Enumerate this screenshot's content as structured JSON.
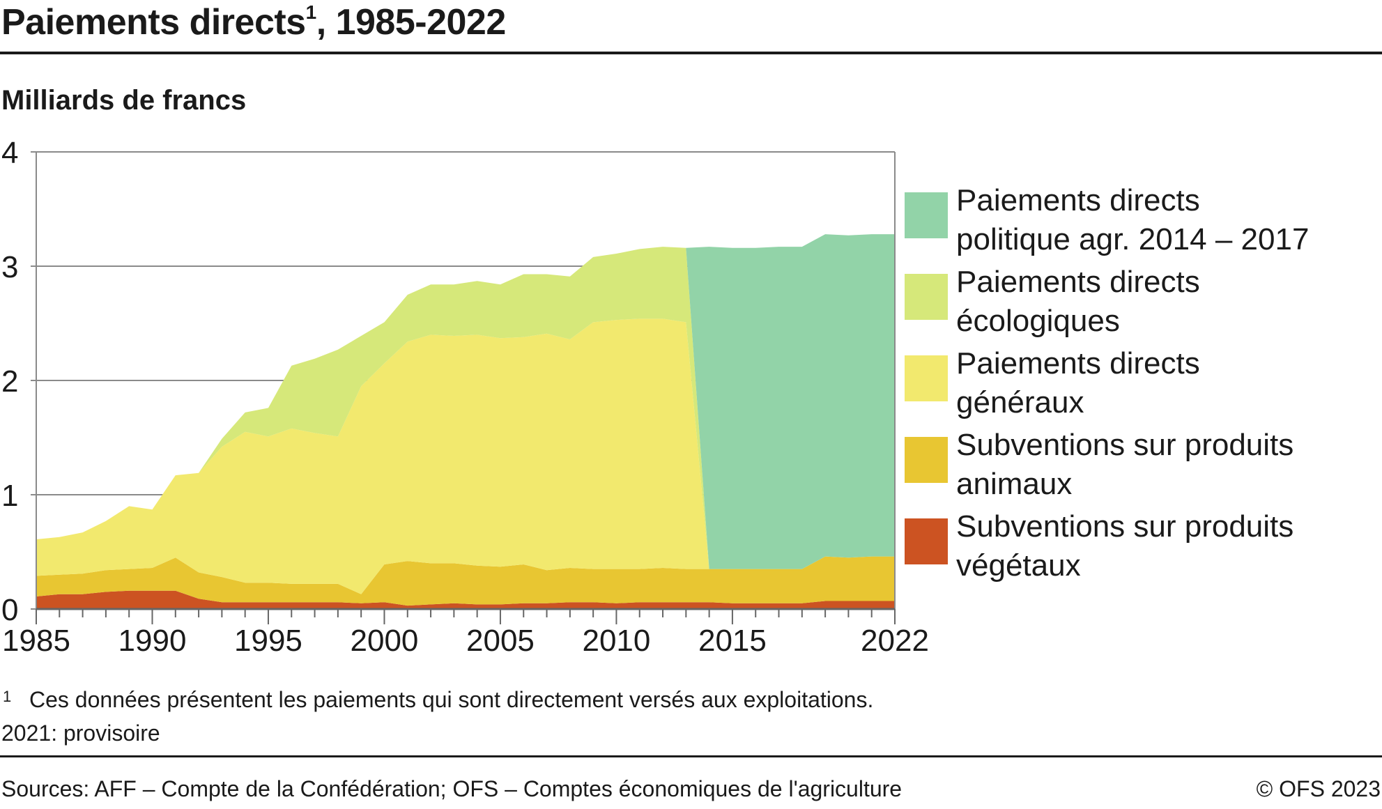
{
  "title": "Paiements directs",
  "title_mark": "1",
  "title_years": ", 1985-2022",
  "subtitle": "Milliards de francs",
  "footnote_mark": "1",
  "footnote": "Ces données présentent les paiements qui sont directement versés aux exploitations.",
  "note": "2021: provisoire",
  "source": "Sources: AFF – Compte de la Confédération; OFS – Comptes économiques de l'agriculture",
  "copyright": "© OFS 2023",
  "chart_data": {
    "type": "area",
    "stacked": true,
    "x": [
      1985,
      1986,
      1987,
      1988,
      1989,
      1990,
      1991,
      1992,
      1993,
      1994,
      1995,
      1996,
      1997,
      1998,
      1999,
      2000,
      2001,
      2002,
      2003,
      2004,
      2005,
      2006,
      2007,
      2008,
      2009,
      2010,
      2011,
      2012,
      2013,
      2014,
      2015,
      2016,
      2017,
      2018,
      2019,
      2020,
      2021,
      2022
    ],
    "xticks": [
      "1985",
      "1990",
      "1995",
      "2000",
      "2005",
      "2010",
      "2015",
      "2022"
    ],
    "yticks": [
      "0",
      "1",
      "2",
      "3",
      "4"
    ],
    "ylim": [
      0,
      4
    ],
    "xlim": [
      1985,
      2022
    ],
    "grid": "horizontal",
    "legend_position": "right",
    "series": [
      {
        "name": "Subventions sur produits végétaux",
        "color": "#cc5322",
        "values": [
          0.11,
          0.13,
          0.13,
          0.15,
          0.16,
          0.16,
          0.16,
          0.09,
          0.06,
          0.06,
          0.06,
          0.06,
          0.06,
          0.06,
          0.05,
          0.06,
          0.03,
          0.04,
          0.05,
          0.04,
          0.04,
          0.05,
          0.05,
          0.06,
          0.06,
          0.05,
          0.06,
          0.06,
          0.06,
          0.06,
          0.05,
          0.05,
          0.05,
          0.05,
          0.07,
          0.07,
          0.07,
          0.07
        ]
      },
      {
        "name": "Subventions sur produits animaux",
        "color": "#e8c632",
        "values": [
          0.18,
          0.17,
          0.18,
          0.19,
          0.19,
          0.2,
          0.29,
          0.23,
          0.22,
          0.17,
          0.17,
          0.16,
          0.16,
          0.16,
          0.08,
          0.33,
          0.39,
          0.36,
          0.35,
          0.34,
          0.33,
          0.34,
          0.29,
          0.3,
          0.29,
          0.3,
          0.29,
          0.3,
          0.29,
          0.29,
          0.3,
          0.3,
          0.3,
          0.3,
          0.39,
          0.38,
          0.39,
          0.39
        ]
      },
      {
        "name": "Paiements directs généraux",
        "color": "#f2e96e",
        "values": [
          0.32,
          0.33,
          0.36,
          0.43,
          0.55,
          0.51,
          0.72,
          0.87,
          1.14,
          1.32,
          1.28,
          1.36,
          1.32,
          1.29,
          1.82,
          1.76,
          1.92,
          2.0,
          1.99,
          2.02,
          2.0,
          1.99,
          2.07,
          2.0,
          2.16,
          2.18,
          2.19,
          2.18,
          2.16,
          0,
          0,
          0,
          0,
          0,
          0,
          0,
          0,
          0
        ]
      },
      {
        "name": "Paiements directs écologiques",
        "color": "#d6e87a",
        "values": [
          0,
          0,
          0,
          0,
          0,
          0,
          0,
          0,
          0.07,
          0.17,
          0.25,
          0.55,
          0.65,
          0.76,
          0.44,
          0.36,
          0.41,
          0.44,
          0.45,
          0.47,
          0.47,
          0.55,
          0.52,
          0.55,
          0.57,
          0.58,
          0.61,
          0.63,
          0.65,
          0,
          0,
          0,
          0,
          0,
          0,
          0,
          0,
          0
        ]
      },
      {
        "name": "Paiements directs politique agr. 2014 – 2017",
        "color": "#92d3a8",
        "values": [
          0,
          0,
          0,
          0,
          0,
          0,
          0,
          0,
          0,
          0,
          0,
          0,
          0,
          0,
          0,
          0,
          0,
          0,
          0,
          0,
          0,
          0,
          0,
          0,
          0,
          0,
          0,
          0,
          0,
          2.82,
          2.81,
          2.81,
          2.82,
          2.82,
          2.82,
          2.82,
          2.82,
          2.82
        ]
      }
    ]
  },
  "legend": [
    {
      "label": "Paiements directs\npolitique agr. 2014 – 2017",
      "color": "#92d3a8"
    },
    {
      "label": "Paiements directs\nécologiques",
      "color": "#d6e87a"
    },
    {
      "label": "Paiements directs\ngénéraux",
      "color": "#f2e96e"
    },
    {
      "label": "Subventions sur produits\nanimaux",
      "color": "#e8c632"
    },
    {
      "label": "Subventions sur produits\nvégétaux",
      "color": "#cc5322"
    }
  ]
}
